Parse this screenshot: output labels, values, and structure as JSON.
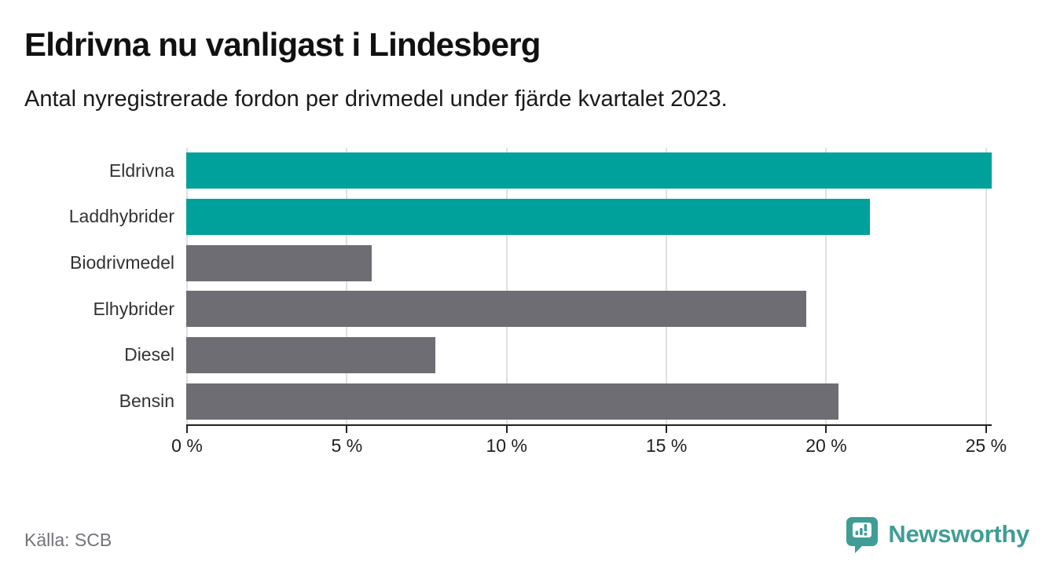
{
  "title": "Eldrivna nu vanligast i Lindesberg",
  "subtitle": "Antal nyregistrerade fordon per drivmedel under fjärde kvartalet 2023.",
  "source": "Källa: SCB",
  "brand": {
    "name": "Newsworthy",
    "icon": "newsworthy-pin-chart-icon",
    "color": "#3f9d96"
  },
  "colors": {
    "highlight_bar": "#00a19a",
    "default_bar": "#6d6d73",
    "gridline": "#e0e0e0",
    "axis": "#222222",
    "title_text": "#111111",
    "label_text": "#333333",
    "source_text": "#73737b",
    "background": "#ffffff"
  },
  "chart_data": {
    "type": "bar",
    "orientation": "horizontal",
    "title": "Eldrivna nu vanligast i Lindesberg",
    "subtitle": "Antal nyregistrerade fordon per drivmedel under fjärde kvartalet 2023.",
    "categories": [
      "Eldrivna",
      "Laddhybrider",
      "Biodrivmedel",
      "Elhybrider",
      "Diesel",
      "Bensin"
    ],
    "values": [
      25.2,
      21.4,
      5.8,
      19.4,
      7.8,
      20.4
    ],
    "unit": "%",
    "highlighted_categories": [
      "Eldrivna",
      "Laddhybrider"
    ],
    "bar_colors": [
      "#00a19a",
      "#00a19a",
      "#6d6d73",
      "#6d6d73",
      "#6d6d73",
      "#6d6d73"
    ],
    "x_tick_values": [
      0,
      5,
      10,
      15,
      20,
      25
    ],
    "x_tick_labels": [
      "0 %",
      "5 %",
      "10 %",
      "15 %",
      "20 %",
      "25 %"
    ],
    "xlim": [
      0,
      25.2
    ],
    "xlabel": "",
    "ylabel": "",
    "grid": true,
    "legend": false
  }
}
